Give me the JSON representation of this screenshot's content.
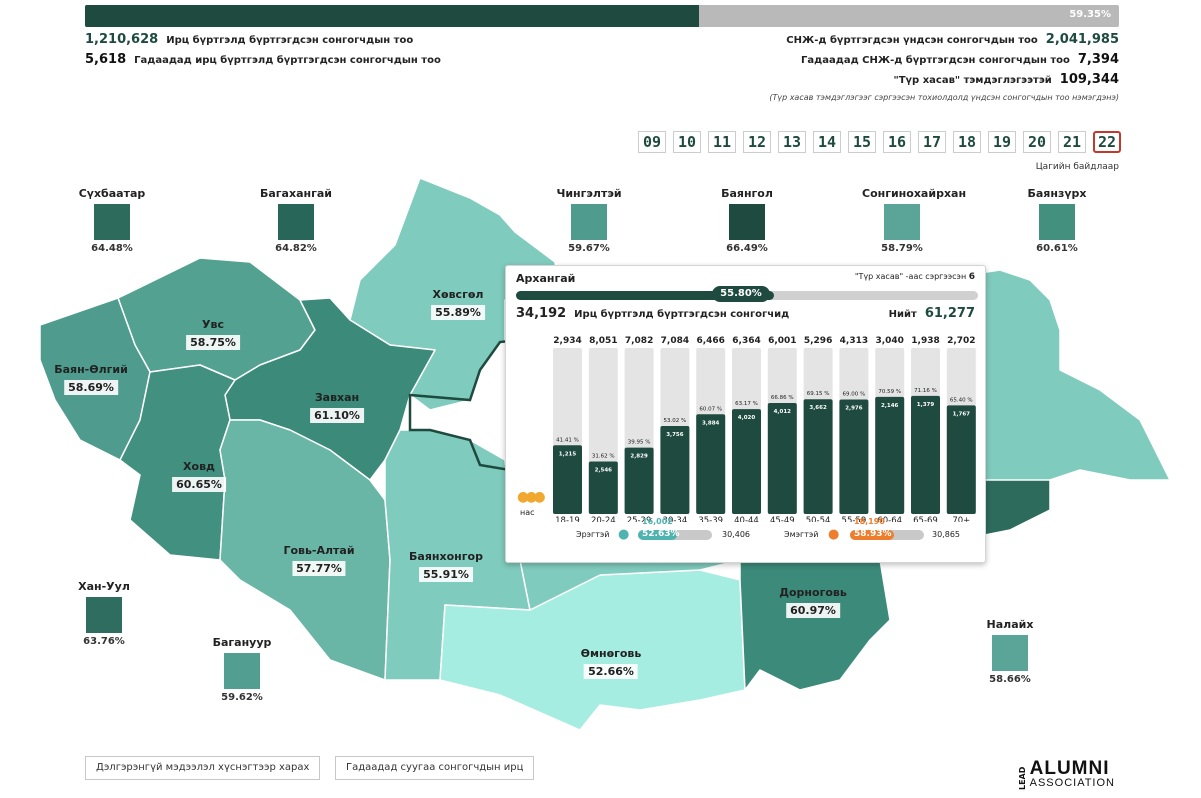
{
  "top": {
    "progress_pct": 59.35,
    "progress_label": "59.35%",
    "registered_count": "1,210,628",
    "registered_label": "Ирц бүртгэлд бүртгэгдсэн сонгогчдын тоо",
    "foreign_registered_count": "5,618",
    "foreign_registered_label": "Гадаадад ирц бүртгэлд бүртгэгдсэн сонгогчдын тоо",
    "base_voters_label": "СНЖ-д бүртгэгдсэн үндсэн сонгогчдын тоо",
    "base_voters_count": "2,041,985",
    "foreign_voters_label": "Гадаадад СНЖ-д бүртгэгдсэн сонгогчдын тоо",
    "foreign_voters_count": "7,394",
    "temp_label": "\"Түр хасав\" тэмдэглэгээтэй",
    "temp_count": "109,344",
    "note": "(Түр хасав тэмдэглэгээг сэргээсэн тохиолдолд үндсэн сонгогчдын тоо нэмэгдэнэ)"
  },
  "days": {
    "items": [
      "09",
      "10",
      "11",
      "12",
      "13",
      "14",
      "15",
      "16",
      "17",
      "18",
      "19",
      "20",
      "21",
      "22"
    ],
    "active": "22",
    "label": "Цагийн байдлаар"
  },
  "districts": [
    {
      "name": "Сүхбаатар",
      "pct": "64.48%",
      "color": "#2d6b5c"
    },
    {
      "name": "Багахангай",
      "pct": "64.82%",
      "color": "#29665a"
    },
    {
      "name": "Чингэлтэй",
      "pct": "59.67%",
      "color": "#4f9c8e"
    },
    {
      "name": "Баянгол",
      "pct": "66.49%",
      "color": "#1e4a3f"
    },
    {
      "name": "Сонгинохайрхан",
      "pct": "58.79%",
      "color": "#5aa597"
    },
    {
      "name": "Баянзүрх",
      "pct": "60.61%",
      "color": "#44907f"
    },
    {
      "name": "Хан-Уул",
      "pct": "63.76%",
      "color": "#2e6d5f"
    },
    {
      "name": "Багануур",
      "pct": "59.62%",
      "color": "#529e90"
    },
    {
      "name": "Налайх",
      "pct": "58.66%",
      "color": "#5aa597"
    }
  ],
  "provinces": [
    {
      "name": "Хөвсгөл",
      "pct": "55.89%"
    },
    {
      "name": "Увс",
      "pct": "58.75%"
    },
    {
      "name": "Баян-Өлгий",
      "pct": "58.69%"
    },
    {
      "name": "Завхан",
      "pct": "61.10%"
    },
    {
      "name": "Ховд",
      "pct": "60.65%"
    },
    {
      "name": "Архангай",
      "pct": "55.80%"
    },
    {
      "name": "Говь-Алтай",
      "pct": "57.77%"
    },
    {
      "name": "Баянхонгор",
      "pct": "55.91%"
    },
    {
      "name": "Дорноговь",
      "pct": "60.97%"
    },
    {
      "name": "Өмнөговь",
      "pct": "52.66%"
    }
  ],
  "popup": {
    "title": "Архангай",
    "restored_label": "\"Түр хасав\" -аас сэргээсэн",
    "restored_count": "6",
    "progress_pct": 55.8,
    "progress_label": "55.80%",
    "registered_count": "34,192",
    "registered_label": "Ирц бүртгэлд бүртгэгдсэн сонгогчид",
    "total_label": "Нийт",
    "total_count": "61,277",
    "age_axis_label": "нас",
    "male": {
      "label": "Эрэгтэй",
      "registered": "16,002",
      "pct_label": "52.63%",
      "pct": 52.63,
      "total": "30,406",
      "color": "#4fb3b0"
    },
    "female": {
      "label": "Эмэгтэй",
      "registered": "18,190",
      "pct_label": "58.93%",
      "pct": 58.93,
      "total": "30,865",
      "color": "#ee7d2d"
    }
  },
  "chart_data": {
    "type": "bar",
    "categories": [
      "18-19",
      "20-24",
      "25-29",
      "30-34",
      "35-39",
      "40-44",
      "45-49",
      "50-54",
      "55-59",
      "60-64",
      "65-69",
      "70+"
    ],
    "totals": [
      2934,
      8051,
      7082,
      7084,
      6466,
      6364,
      6001,
      5296,
      4313,
      3040,
      1938,
      2702
    ],
    "totals_labels": [
      "2,934",
      "8,051",
      "7,082",
      "7,084",
      "6,466",
      "6,364",
      "6,001",
      "5,296",
      "4,313",
      "3,040",
      "1,938",
      "2,702"
    ],
    "registered": [
      1215,
      2546,
      2829,
      3756,
      3884,
      4020,
      4012,
      3662,
      2976,
      2146,
      1379,
      1767
    ],
    "registered_labels": [
      "1,215",
      "2,546",
      "2,829",
      "3,756",
      "3,884",
      "4,020",
      "4,012",
      "3,662",
      "2,976",
      "2,146",
      "1,379",
      "1,767"
    ],
    "percent": [
      41.41,
      31.62,
      39.95,
      53.02,
      60.07,
      63.17,
      66.86,
      69.15,
      69.0,
      70.59,
      71.16,
      65.4
    ],
    "percent_labels": [
      "41.41 %",
      "31.62 %",
      "39.95 %",
      "53.02 %",
      "60.07 %",
      "63.17 %",
      "66.86 %",
      "69.15 %",
      "69.00 %",
      "70.59 %",
      "71.16 %",
      "65.40 %"
    ]
  },
  "buttons": {
    "details": "Дэлгэрэнгүй мэдээлэл хүснэгтээр харах",
    "abroad": "Гадаадад суугаа сонгогчдын ирц"
  },
  "logo": {
    "lead": "LEAD",
    "alumni": "ALUMNI",
    "association": "ASSOCIATION"
  }
}
